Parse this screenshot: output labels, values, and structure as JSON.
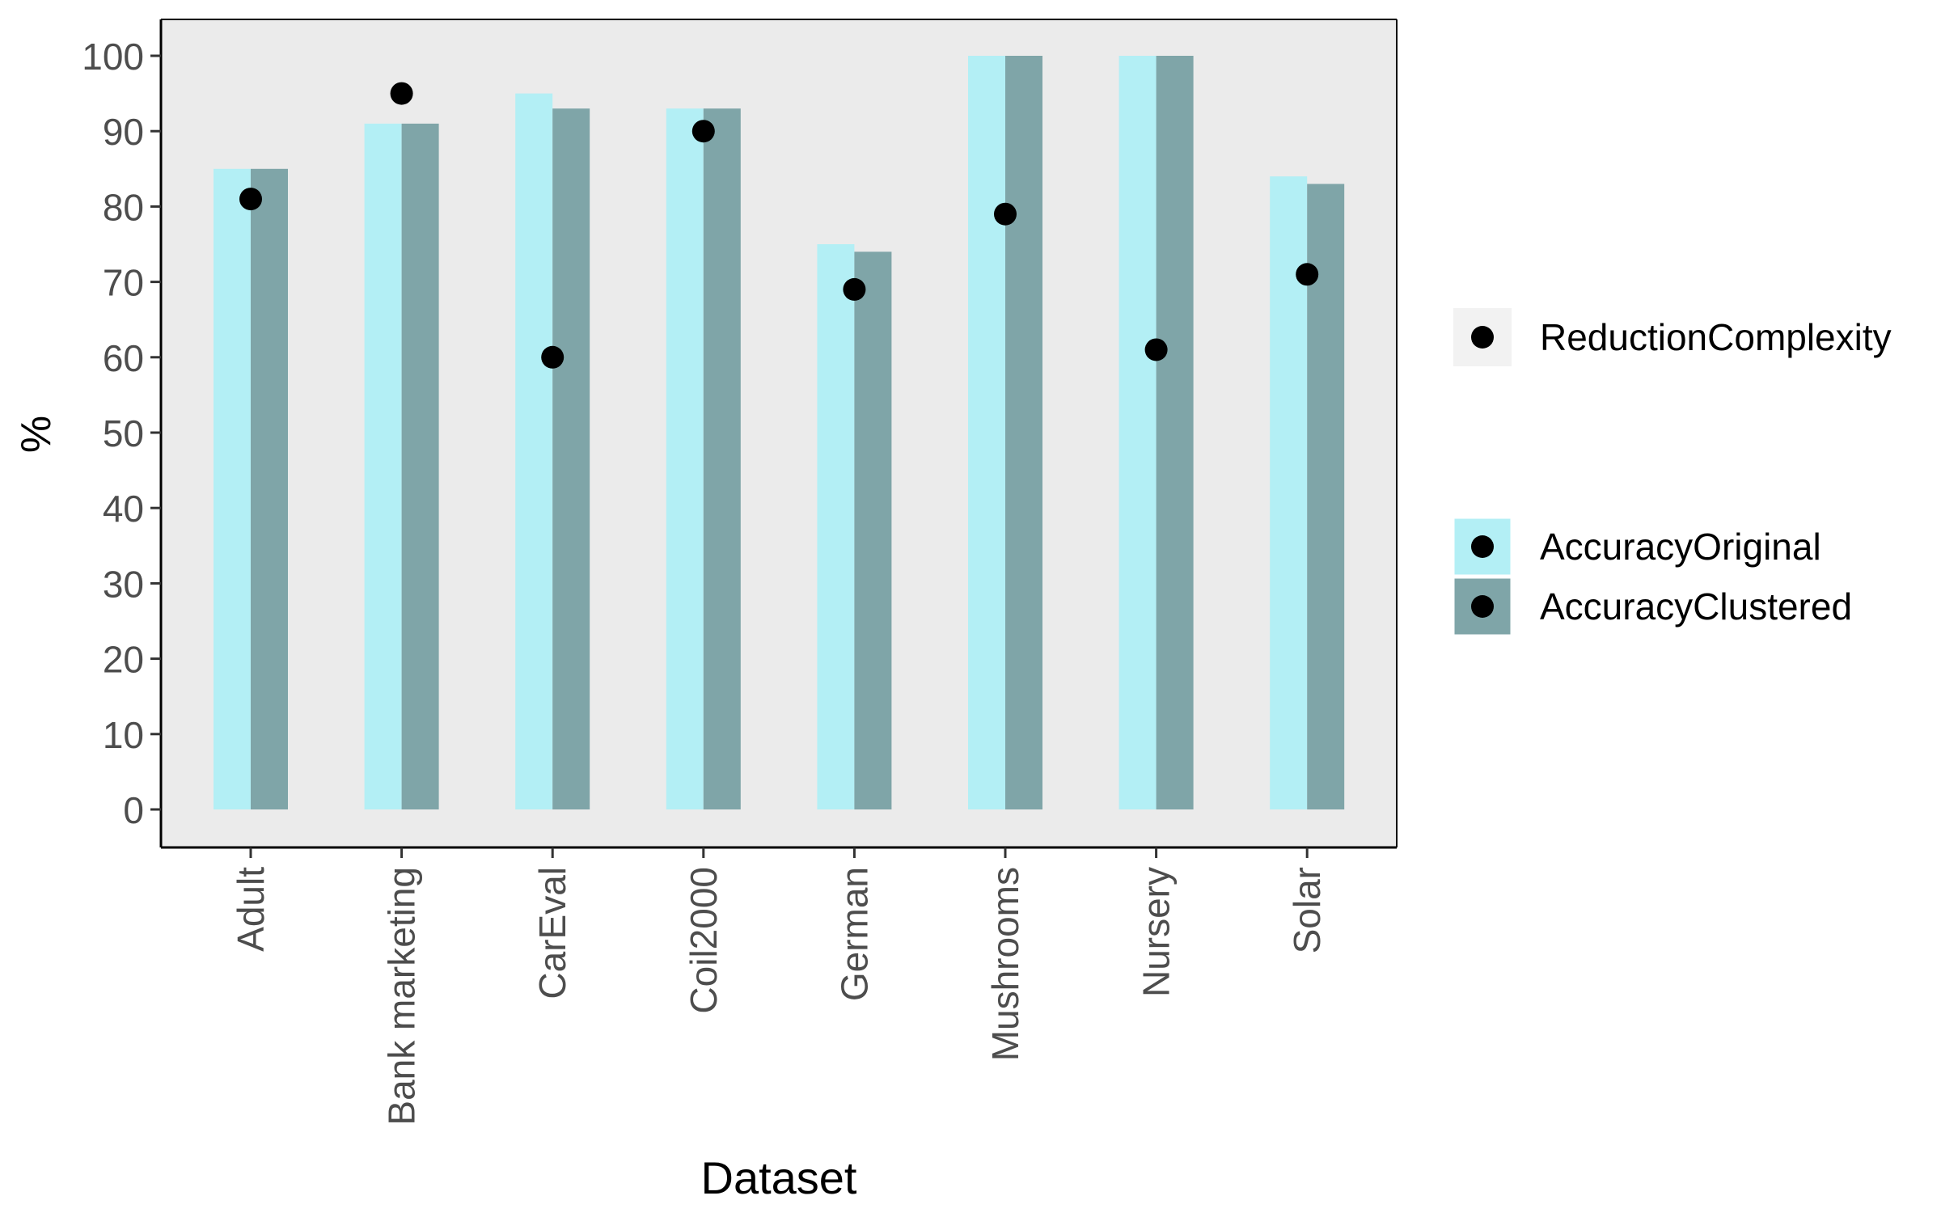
{
  "chart_data": {
    "type": "bar",
    "xlabel": "Dataset",
    "ylabel": "%",
    "ylim": [
      0,
      100
    ],
    "yticks": [
      0,
      10,
      20,
      30,
      40,
      50,
      60,
      70,
      80,
      90,
      100
    ],
    "grid": false,
    "categories": [
      "Adult",
      "Bank marketing",
      "CarEval",
      "Coil2000",
      "German",
      "Mushrooms",
      "Nursery",
      "Solar"
    ],
    "series": [
      {
        "name": "AccuracyOriginal",
        "kind": "bar",
        "color": "#b3eff5",
        "values": [
          85,
          91,
          95,
          93,
          75,
          100,
          100,
          84
        ]
      },
      {
        "name": "AccuracyClustered",
        "kind": "bar",
        "color": "#7fa5a8",
        "values": [
          85,
          91,
          93,
          93,
          74,
          100,
          100,
          83
        ]
      },
      {
        "name": "ReductionComplexity",
        "kind": "point",
        "color": "#000000",
        "values": [
          81,
          95,
          60,
          90,
          69,
          79,
          61,
          71
        ]
      }
    ],
    "legend_position": "right",
    "panel_background": "#ebebeb"
  }
}
